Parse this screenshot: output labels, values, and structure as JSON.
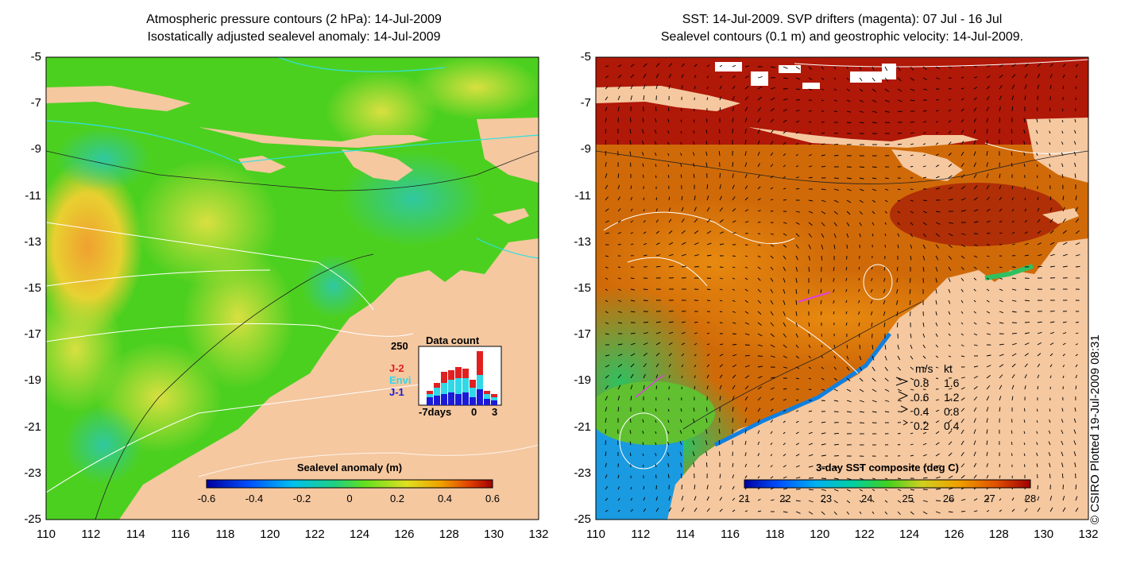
{
  "left_panel": {
    "title_line1": "Atmospheric pressure contours (2 hPa): 14-Jul-2009",
    "title_line2": "Isostatically adjusted sealevel anomaly: 14-Jul-2009",
    "colorbar_title": "Sealevel anomaly (m)",
    "colorbar_ticks": [
      "-0.6",
      "-0.4",
      "-0.2",
      "0",
      "0.2",
      "0.4",
      "0.6"
    ],
    "data_count": {
      "title": "Data count",
      "ymax_label": "250",
      "x_labels": [
        "-7days",
        "0",
        "3"
      ],
      "legend": [
        "J-2",
        "Envi",
        "J-1"
      ],
      "legend_colors": [
        "#e02020",
        "#30d8e8",
        "#1a1ad8"
      ]
    }
  },
  "right_panel": {
    "title_line1": "SST: 14-Jul-2009. SVP drifters (magenta): 07 Jul - 16 Jul",
    "title_line2": "Sealevel contours (0.1 m) and geostrophic velocity: 14-Jul-2009.",
    "colorbar_title": "3-day SST composite (deg C)",
    "colorbar_ticks": [
      "21",
      "22",
      "23",
      "24",
      "25",
      "26",
      "27",
      "28"
    ],
    "speed_legend": {
      "header": [
        "m/s",
        "kt"
      ],
      "rows": [
        [
          "0.8",
          "1.6"
        ],
        [
          "0.6",
          "1.2"
        ],
        [
          "0.4",
          "0.8"
        ],
        [
          "0.2",
          "0.4"
        ]
      ]
    }
  },
  "axes": {
    "y_labels": [
      "-5",
      "-7",
      "-9",
      "-11",
      "-13",
      "-15",
      "-17",
      "-19",
      "-21",
      "-23",
      "-25"
    ],
    "x_labels": [
      "110",
      "112",
      "114",
      "116",
      "118",
      "120",
      "122",
      "124",
      "126",
      "128",
      "130",
      "132"
    ]
  },
  "credit": "© CSIRO Plotted 19-Jul-2009 08:31",
  "colors": {
    "land": "#f5c8a0",
    "accent_magenta": "#e040e0",
    "contour": "#ffffff",
    "pressure": "#30e0e0"
  }
}
